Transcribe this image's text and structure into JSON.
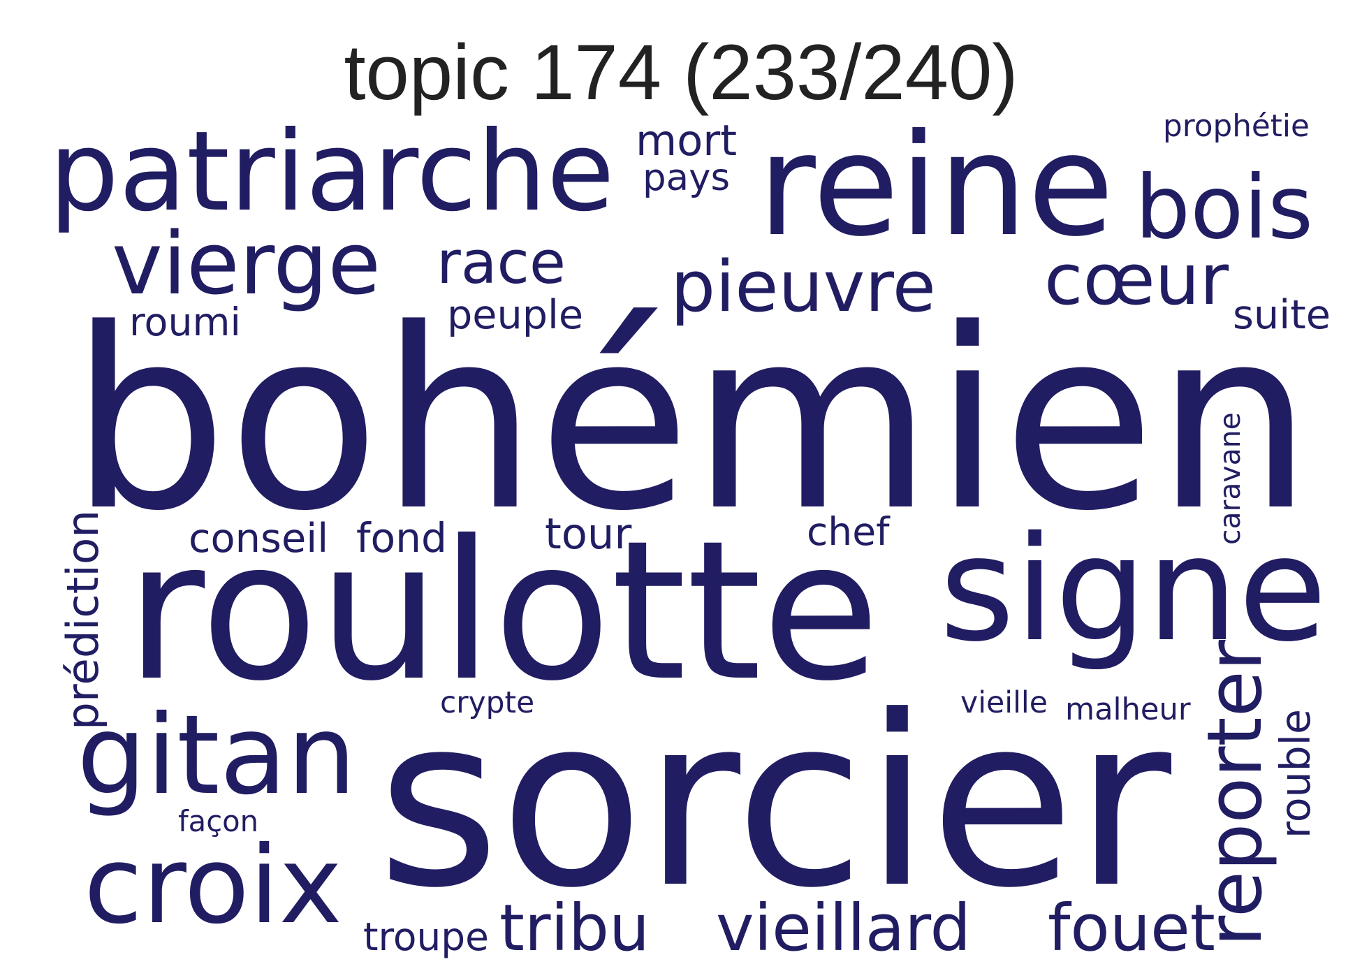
{
  "title": "topic 174 (233/240)",
  "colors": {
    "word": "#211d62",
    "title": "#222222",
    "background": "#ffffff"
  },
  "words": [
    {
      "text": "bohémien"
    },
    {
      "text": "sorcier"
    },
    {
      "text": "roulotte"
    },
    {
      "text": "signe"
    },
    {
      "text": "reine"
    },
    {
      "text": "patriarche"
    },
    {
      "text": "gitan"
    },
    {
      "text": "croix"
    },
    {
      "text": "vierge"
    },
    {
      "text": "bois"
    },
    {
      "text": "pieuvre"
    },
    {
      "text": "cœur"
    },
    {
      "text": "reporter"
    },
    {
      "text": "vieillard"
    },
    {
      "text": "fouet"
    },
    {
      "text": "tribu"
    },
    {
      "text": "race"
    },
    {
      "text": "conseil"
    },
    {
      "text": "fond"
    },
    {
      "text": "tour"
    },
    {
      "text": "chef"
    },
    {
      "text": "mort"
    },
    {
      "text": "pays"
    },
    {
      "text": "peuple"
    },
    {
      "text": "roumi"
    },
    {
      "text": "suite"
    },
    {
      "text": "prédiction"
    },
    {
      "text": "rouble"
    },
    {
      "text": "troupe"
    },
    {
      "text": "caravane"
    },
    {
      "text": "malheur"
    },
    {
      "text": "vieille"
    },
    {
      "text": "crypte"
    },
    {
      "text": "façon"
    },
    {
      "text": "prophétie"
    }
  ]
}
